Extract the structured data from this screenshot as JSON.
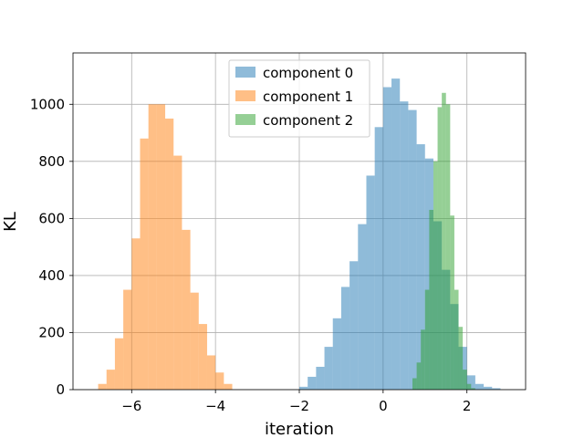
{
  "chart_data": {
    "type": "histogram",
    "title": "",
    "xlabel": "iteration",
    "ylabel": "KL",
    "xlim": [
      -7.4,
      3.4
    ],
    "ylim": [
      0,
      1180
    ],
    "xticks": [
      -6,
      -4,
      -2,
      0,
      2
    ],
    "xtick_labels": [
      "−6",
      "−4",
      "−2",
      "0",
      "2"
    ],
    "yticks": [
      0,
      200,
      400,
      600,
      800,
      1000
    ],
    "ytick_labels": [
      "0",
      "200",
      "400",
      "600",
      "800",
      "1000"
    ],
    "grid": true,
    "legend_position": "top-center",
    "series": [
      {
        "name": "component 0",
        "color": "#1f77b4",
        "alpha": 0.5,
        "bin_width": 0.2,
        "bin_starts": [
          -2.0,
          -1.8,
          -1.6,
          -1.4,
          -1.2,
          -1.0,
          -0.8,
          -0.6,
          -0.4,
          -0.2,
          0.0,
          0.2,
          0.4,
          0.6,
          0.8,
          1.0,
          1.2,
          1.4,
          1.6,
          1.8,
          2.0,
          2.2,
          2.4,
          2.6
        ],
        "counts": [
          10,
          45,
          80,
          150,
          250,
          360,
          450,
          580,
          750,
          920,
          1060,
          1090,
          1010,
          980,
          860,
          810,
          590,
          420,
          300,
          150,
          50,
          20,
          10,
          5
        ]
      },
      {
        "name": "component 1",
        "color": "#ff7f0e",
        "alpha": 0.5,
        "bin_width": 0.2,
        "bin_starts": [
          -6.8,
          -6.6,
          -6.4,
          -6.2,
          -6.0,
          -5.8,
          -5.6,
          -5.4,
          -5.2,
          -5.0,
          -4.8,
          -4.6,
          -4.4,
          -4.2,
          -4.0,
          -3.8
        ],
        "counts": [
          20,
          70,
          180,
          350,
          530,
          880,
          1000,
          1000,
          950,
          820,
          560,
          340,
          230,
          120,
          60,
          20
        ]
      },
      {
        "name": "component 2",
        "color": "#2ca02c",
        "alpha": 0.5,
        "bin_width": 0.1,
        "bin_starts": [
          0.7,
          0.8,
          0.9,
          1.0,
          1.1,
          1.2,
          1.3,
          1.4,
          1.5,
          1.6,
          1.7,
          1.8,
          1.9,
          2.0,
          2.1
        ],
        "counts": [
          40,
          95,
          210,
          350,
          630,
          800,
          990,
          1040,
          1000,
          610,
          350,
          220,
          70,
          20,
          5
        ]
      }
    ]
  }
}
